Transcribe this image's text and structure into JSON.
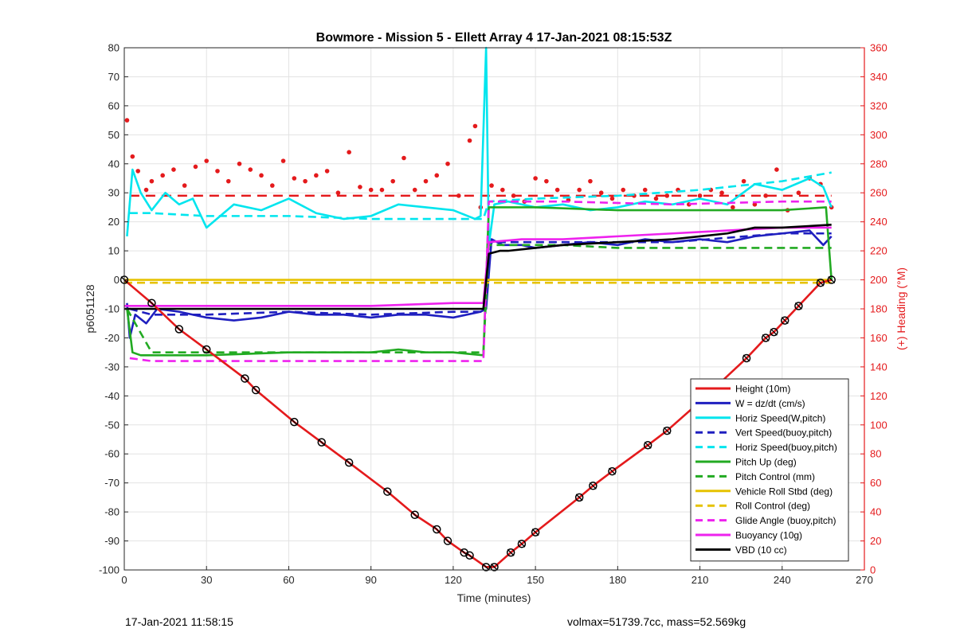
{
  "chart_data": {
    "type": "line",
    "title": "Bowmore - Mission 5 - Ellett Array 4 17-Jan-2021 08:15:53Z",
    "xlabel": "Time (minutes)",
    "ylabel_left": "p6051128",
    "ylabel_right": "(+) Heading (°M)",
    "xlim": [
      0,
      270
    ],
    "ylim_left": [
      -100,
      80
    ],
    "ylim_right": [
      0,
      360
    ],
    "x_ticks": [
      0,
      30,
      60,
      90,
      120,
      150,
      180,
      210,
      240,
      270
    ],
    "y_ticks_left": [
      80,
      70,
      60,
      50,
      40,
      30,
      20,
      10,
      0,
      -10,
      -20,
      -30,
      -40,
      -50,
      -60,
      -70,
      -80,
      -90,
      -100
    ],
    "y_ticks_right": [
      360,
      340,
      320,
      300,
      280,
      260,
      240,
      220,
      200,
      180,
      160,
      140,
      120,
      100,
      80,
      60,
      40,
      20,
      0
    ],
    "grid": true,
    "legend_position": "bottom-right",
    "series": [
      {
        "name": "Height (10m)",
        "color": "#e41a1c",
        "style": "solid",
        "x": [
          0,
          10,
          20,
          30,
          44,
          48,
          62,
          72,
          82,
          96,
          106,
          114,
          118,
          124,
          126,
          132,
          135,
          141,
          145,
          150,
          166,
          171,
          178,
          191,
          198,
          210,
          227,
          234,
          237,
          241,
          246,
          254,
          258
        ],
        "y": [
          0,
          -8,
          -17,
          -24,
          -34,
          -38,
          -49,
          -56,
          -63,
          -73,
          -81,
          -86,
          -90,
          -94,
          -95,
          -99,
          -99,
          -94,
          -91,
          -87,
          -75,
          -71,
          -66,
          -57,
          -52,
          -42,
          -27,
          -20,
          -18,
          -14,
          -9,
          -1,
          0
        ]
      },
      {
        "name": "W = dz/dt (cm/s)",
        "color": "#1f1fbf",
        "style": "solid",
        "x": [
          1,
          2,
          4,
          8,
          12,
          20,
          30,
          40,
          50,
          60,
          70,
          80,
          90,
          100,
          110,
          120,
          130,
          132,
          134,
          138,
          145,
          150,
          160,
          170,
          180,
          190,
          200,
          210,
          220,
          230,
          240,
          250,
          255,
          258
        ],
        "y": [
          -8,
          -20,
          -12,
          -15,
          -10,
          -11,
          -13,
          -14,
          -13,
          -11,
          -12,
          -12,
          -13,
          -12,
          -12,
          -13,
          -11,
          -10,
          14,
          12,
          12,
          11,
          12,
          13,
          12,
          14,
          13,
          14,
          13,
          15,
          16,
          17,
          12,
          15
        ]
      },
      {
        "name": "Horiz Speed(W,pitch)",
        "color": "#00e5ee",
        "style": "solid",
        "x": [
          1,
          3,
          6,
          10,
          15,
          20,
          25,
          30,
          40,
          50,
          60,
          70,
          80,
          90,
          100,
          110,
          120,
          128,
          130,
          132,
          133,
          135,
          140,
          150,
          160,
          170,
          180,
          190,
          200,
          210,
          220,
          230,
          240,
          250,
          255,
          258
        ],
        "y": [
          15,
          38,
          30,
          24,
          30,
          26,
          28,
          18,
          26,
          24,
          28,
          23,
          21,
          22,
          26,
          25,
          24,
          21,
          22,
          80,
          12,
          26,
          27,
          25,
          26,
          24,
          25,
          27,
          26,
          28,
          26,
          33,
          31,
          35,
          32,
          25
        ]
      },
      {
        "name": "Vert Speed(buoy,pitch)",
        "color": "#1f1fbf",
        "style": "dashed",
        "x": [
          2,
          10,
          30,
          60,
          90,
          120,
          131,
          133,
          160,
          200,
          240,
          258
        ],
        "y": [
          -10,
          -12,
          -12,
          -11,
          -12,
          -11,
          -11,
          13,
          13,
          13,
          16,
          16
        ]
      },
      {
        "name": "Horiz Speed(buoy,pitch)",
        "color": "#00e5ee",
        "style": "dashed",
        "x": [
          2,
          10,
          30,
          60,
          90,
          120,
          131,
          133,
          150,
          180,
          210,
          240,
          258
        ],
        "y": [
          23,
          23,
          22,
          22,
          21,
          21,
          21,
          27,
          28,
          29,
          31,
          34,
          37
        ]
      },
      {
        "name": "Pitch Up (deg)",
        "color": "#22aa22",
        "style": "solid",
        "x": [
          1,
          3,
          6,
          10,
          30,
          60,
          90,
          100,
          110,
          120,
          131,
          133,
          150,
          180,
          210,
          240,
          256,
          258
        ],
        "y": [
          -10,
          -25,
          -26,
          -26,
          -26,
          -25,
          -25,
          -24,
          -25,
          -25,
          -26,
          25,
          25,
          24,
          24,
          24,
          25,
          0
        ]
      },
      {
        "name": "Pitch Control (mm)",
        "color": "#22aa22",
        "style": "dashed",
        "x": [
          1,
          10,
          30,
          60,
          90,
          120,
          131,
          133,
          160,
          180,
          200,
          220,
          240,
          258
        ],
        "y": [
          -10,
          -25,
          -25,
          -25,
          -25,
          -25,
          -25,
          12,
          12,
          11,
          11,
          11,
          11,
          11
        ]
      },
      {
        "name": "Vehicle Roll Stbd (deg)",
        "color": "#e6c200",
        "style": "solid",
        "x": [
          0,
          10,
          30,
          60,
          90,
          120,
          131,
          133,
          160,
          200,
          240,
          258
        ],
        "y": [
          0,
          0,
          0,
          0,
          0,
          0,
          0,
          0,
          0,
          0,
          0,
          0
        ]
      },
      {
        "name": "Roll Control (deg)",
        "color": "#e6c200",
        "style": "dashed",
        "x": [
          0,
          30,
          60,
          90,
          120,
          131,
          133,
          160,
          200,
          240,
          258
        ],
        "y": [
          -1,
          -1,
          -1,
          -1,
          -1,
          -1,
          -1,
          -1,
          -1,
          -1,
          -1
        ]
      },
      {
        "name": "Glide Angle (buoy,pitch)",
        "color": "#ee22ee",
        "style": "dashed",
        "x": [
          2,
          10,
          30,
          60,
          90,
          120,
          131,
          133,
          160,
          200,
          240,
          258
        ],
        "y": [
          -27,
          -28,
          -28,
          -28,
          -28,
          -28,
          -28,
          27,
          27,
          26,
          27,
          27
        ]
      },
      {
        "name": "Buoyancy (10g)",
        "color": "#ee22ee",
        "style": "solid",
        "x": [
          0,
          30,
          60,
          90,
          120,
          131,
          133,
          145,
          160,
          180,
          200,
          220,
          240,
          258
        ],
        "y": [
          -9,
          -9,
          -9,
          -9,
          -8,
          -8,
          13,
          14,
          14,
          15,
          16,
          17,
          18,
          18
        ]
      },
      {
        "name": "VBD (10 cc)",
        "color": "#000000",
        "style": "solid",
        "x": [
          0,
          30,
          60,
          90,
          120,
          131,
          133,
          137,
          140,
          150,
          160,
          180,
          200,
          220,
          230,
          240,
          258
        ],
        "y": [
          -10,
          -10,
          -10,
          -10,
          -10,
          -10,
          9,
          10,
          10,
          11,
          12,
          13,
          14,
          16,
          18,
          18,
          19
        ]
      }
    ],
    "heading_series": {
      "name": "Heading",
      "color": "#e41a1c",
      "axis": "right",
      "reference_line": {
        "style": "dashed",
        "value": 258
      },
      "x": [
        1,
        3,
        5,
        8,
        10,
        14,
        18,
        22,
        26,
        30,
        34,
        38,
        42,
        46,
        50,
        54,
        58,
        62,
        66,
        70,
        74,
        78,
        82,
        86,
        90,
        94,
        98,
        102,
        106,
        110,
        114,
        118,
        122,
        126,
        128,
        130,
        134,
        138,
        142,
        146,
        150,
        154,
        158,
        162,
        166,
        170,
        174,
        178,
        182,
        186,
        190,
        194,
        198,
        202,
        206,
        210,
        214,
        218,
        222,
        226,
        230,
        234,
        238,
        242,
        246,
        250,
        254,
        258
      ],
      "y": [
        310,
        285,
        275,
        262,
        268,
        272,
        276,
        265,
        278,
        282,
        275,
        268,
        280,
        276,
        272,
        265,
        282,
        270,
        268,
        272,
        275,
        260,
        288,
        264,
        262,
        262,
        268,
        284,
        262,
        268,
        272,
        280,
        258,
        296,
        306,
        250,
        265,
        262,
        258,
        254,
        270,
        268,
        262,
        255,
        262,
        268,
        260,
        256,
        262,
        258,
        262,
        256,
        258,
        262,
        252,
        258,
        262,
        260,
        250,
        268,
        252,
        258,
        276,
        248,
        260,
        270,
        266,
        250
      ]
    }
  },
  "footer": {
    "timestamp": "17-Jan-2021 11:58:15",
    "summary": "volmax=51739.7cc, mass=52.569kg"
  }
}
